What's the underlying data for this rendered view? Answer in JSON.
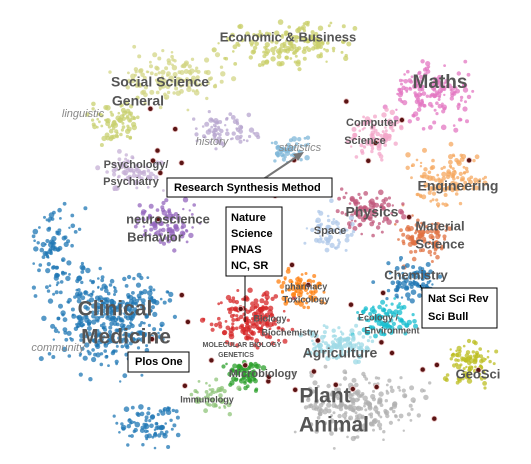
{
  "labels": {
    "economic": "Economic & Business",
    "social": [
      "Social Science",
      "General"
    ],
    "maths": "Maths",
    "linguistic": "linguistic",
    "history": "history",
    "statistics": "statistics",
    "computer": [
      "Computer",
      "Science"
    ],
    "psychology": [
      "Psychology/",
      "Psychiatry"
    ],
    "research_synthesis": "Research Synthesis Method",
    "engineering": "Engineering",
    "physics": "Physics",
    "material": [
      "Material",
      "Science"
    ],
    "neuroscience": [
      "neuroscience",
      "Behavior"
    ],
    "nature_box": [
      "Nature",
      "Science",
      "PNAS",
      "NC, SR"
    ],
    "space": "Space",
    "chemistry": "Chemistry",
    "pharmacy": [
      "pharmacy",
      "Toxicology"
    ],
    "nsr_box": [
      "Nat Sci Rev",
      "Sci Bull"
    ],
    "clinical": [
      "Clinical",
      "Medicine"
    ],
    "biology": [
      "Biology",
      "Biochemistry"
    ],
    "ecology": [
      "Ecology /",
      "Environment"
    ],
    "molecular": [
      "MOLECULAR BIOLOGY",
      "GENETICS"
    ],
    "agriculture": "Agriculture",
    "plos": "Plos One",
    "community": "community",
    "geosci": "GeoSci",
    "microbiology": "Microbiology",
    "immunology": "Immunology",
    "plant": [
      "Plant",
      "Animal"
    ]
  }
}
